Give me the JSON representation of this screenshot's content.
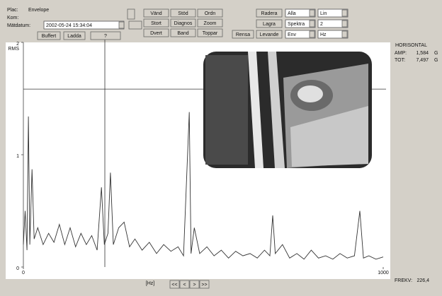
{
  "header": {
    "plac_label": "Plac:",
    "plac_value": "Envelope",
    "kom_label": "Kom:",
    "date_label": "Mätdatum:",
    "date_value": "2002-05-24 15:34:04"
  },
  "buttons": {
    "left": [
      "Buffert",
      "Ladda",
      "?"
    ],
    "grid": [
      "Vänd",
      "Stöd",
      "Ordn",
      "Stort",
      "Diagnos",
      "Zoom",
      "Dvert",
      "Band",
      "Toppar"
    ],
    "rensa": "Rensa",
    "right": [
      "Radera",
      "Lagra",
      "Levande"
    ]
  },
  "dropdowns": [
    [
      "Alla",
      "Lin"
    ],
    [
      "Spektra",
      "2"
    ],
    [
      "Env",
      "Hz"
    ]
  ],
  "nav": [
    "<<",
    "<",
    ">",
    ">>"
  ],
  "chart_data": {
    "type": "line",
    "y_label": "RMS",
    "x_label": "[Hz]",
    "color": "#333333",
    "x": [
      0,
      5,
      10,
      14,
      18,
      24,
      30,
      40,
      55,
      70,
      85,
      100,
      115,
      130,
      145,
      160,
      175,
      190,
      205,
      217,
      225,
      235,
      242,
      250,
      265,
      280,
      295,
      310,
      330,
      350,
      370,
      390,
      410,
      430,
      445,
      461,
      466,
      475,
      490,
      510,
      530,
      550,
      570,
      590,
      610,
      630,
      650,
      670,
      685,
      693,
      700,
      720,
      740,
      760,
      780,
      800,
      820,
      840,
      860,
      880,
      900,
      920,
      935,
      945,
      960,
      980,
      1000
    ],
    "values": [
      0.2,
      0.5,
      0.15,
      1.34,
      0.2,
      0.87,
      0.25,
      0.35,
      0.2,
      0.3,
      0.22,
      0.38,
      0.2,
      0.35,
      0.18,
      0.3,
      0.2,
      0.28,
      0.15,
      0.71,
      0.2,
      0.3,
      0.84,
      0.2,
      0.35,
      0.4,
      0.18,
      0.25,
      0.15,
      0.22,
      0.12,
      0.2,
      0.14,
      0.18,
      0.1,
      1.38,
      0.12,
      0.35,
      0.12,
      0.18,
      0.1,
      0.15,
      0.08,
      0.14,
      0.1,
      0.12,
      0.08,
      0.15,
      0.1,
      0.46,
      0.12,
      0.2,
      0.08,
      0.12,
      0.07,
      0.15,
      0.08,
      0.1,
      0.07,
      0.12,
      0.08,
      0.1,
      0.5,
      0.08,
      0.1,
      0.07,
      0.09
    ],
    "xlim": [
      0,
      1000
    ],
    "ylim": [
      0,
      2
    ],
    "xticks": [
      0,
      1000
    ],
    "yticks": [
      0,
      1,
      2
    ],
    "readout": {
      "title": "HORISONTAL",
      "amp_label": "AMP:",
      "amp": {
        "value": 1.584,
        "label": "1,584"
      },
      "amp_unit": "G",
      "tot_label": "TOT:",
      "tot": {
        "value": 7.497,
        "label": "7,497"
      },
      "tot_unit": "G",
      "freq_label": "FREKV:",
      "freq": {
        "value": 226.4,
        "label": "226,4"
      }
    }
  }
}
